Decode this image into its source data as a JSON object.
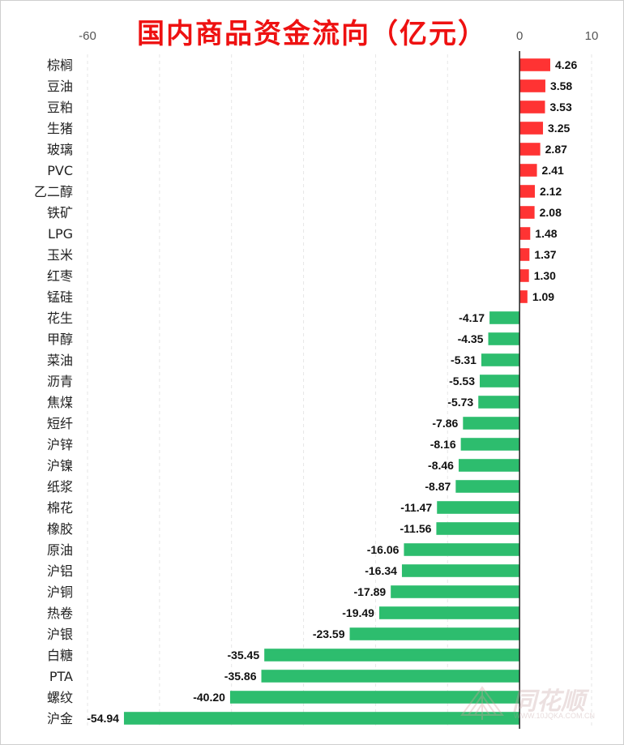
{
  "chart_data": {
    "type": "bar",
    "orientation": "horizontal",
    "title": "国内商品资金流向（亿元）",
    "xlim": [
      -60,
      10
    ],
    "x_ticks": [
      "-60",
      "0",
      "10"
    ],
    "grid": true,
    "colors": {
      "positive": "#ff3333",
      "negative": "#2dbd6e"
    },
    "categories": [
      "棕榈",
      "豆油",
      "豆粕",
      "生猪",
      "玻璃",
      "PVC",
      "乙二醇",
      "铁矿",
      "LPG",
      "玉米",
      "红枣",
      "锰硅",
      "花生",
      "甲醇",
      "菜油",
      "沥青",
      "焦煤",
      "短纤",
      "沪锌",
      "沪镍",
      "纸浆",
      "棉花",
      "橡胶",
      "原油",
      "沪铝",
      "沪铜",
      "热卷",
      "沪银",
      "白糖",
      "PTA",
      "螺纹",
      "沪金"
    ],
    "values": [
      4.26,
      3.58,
      3.53,
      3.25,
      2.87,
      2.41,
      2.12,
      2.08,
      1.48,
      1.37,
      1.3,
      1.09,
      -4.17,
      -4.35,
      -5.31,
      -5.53,
      -5.73,
      -7.86,
      -8.16,
      -8.46,
      -8.87,
      -11.47,
      -11.56,
      -16.06,
      -16.34,
      -17.89,
      -19.49,
      -23.59,
      -35.45,
      -35.86,
      -40.2,
      -54.94
    ],
    "value_labels": [
      "4.26",
      "3.58",
      "3.53",
      "3.25",
      "2.87",
      "2.41",
      "2.12",
      "2.08",
      "1.48",
      "1.37",
      "1.30",
      "1.09",
      "-4.17",
      "-4.35",
      "-5.31",
      "-5.53",
      "-5.73",
      "-7.86",
      "-8.16",
      "-8.46",
      "-8.87",
      "-11.47",
      "-11.56",
      "-16.06",
      "-16.34",
      "-17.89",
      "-19.49",
      "-23.59",
      "-35.45",
      "-35.86",
      "-40.20",
      "-54.94"
    ]
  },
  "watermark": {
    "brand": "同花顺",
    "url": "WWW.10JQKA.COM.CN"
  }
}
